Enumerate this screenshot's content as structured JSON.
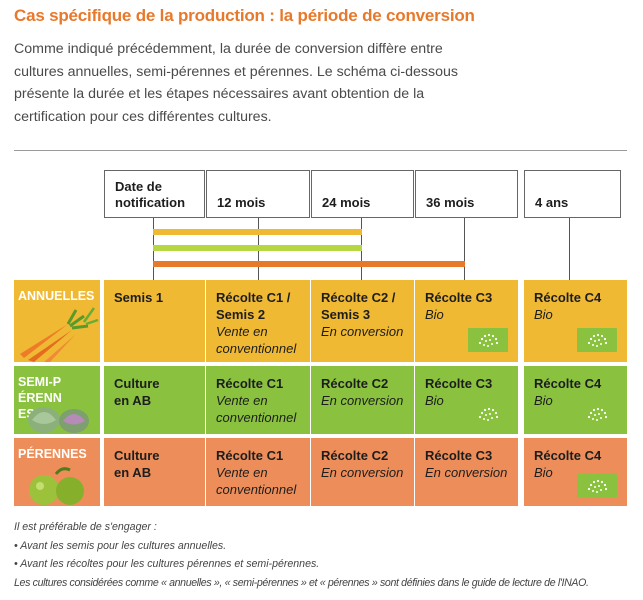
{
  "title": "Cas spécifique de la production : la période de conversion",
  "intro": "Comme indiqué précédemment, la durée de conversion diffère entre cultures annuelles, semi-pérennes et pérennes. Le schéma ci-dessous présente la durée et les étapes nécessaires avant obtention de la certification pour ces différentes cultures.",
  "header": [
    "Date de notification",
    "12 mois",
    "24 mois",
    "36 mois",
    "4 ans"
  ],
  "colors": {
    "title": "#e8792b",
    "annuelles": "#f0b934",
    "semi_perennes": "#8ac23f",
    "perennes": "#ed8e5a",
    "eu_leaf": "#8ac23f"
  },
  "rows": [
    {
      "label": "ANNUELLES",
      "cells": [
        {
          "h": "Semis 1",
          "s": ""
        },
        {
          "h": "Récolte C1 / Semis 2",
          "s": "Vente en conventionnel"
        },
        {
          "h": "Récolte C2 / Semis 3",
          "s": "En conversion"
        },
        {
          "h": "Récolte C3",
          "s": "Bio"
        },
        {
          "h": "Récolte C4",
          "s": "Bio"
        }
      ]
    },
    {
      "label": "SEMI-PÉRENNES",
      "cells": [
        {
          "h": "Culture en AB",
          "s": ""
        },
        {
          "h": "Récolte C1",
          "s": "Vente en conventionnel"
        },
        {
          "h": "Récolte C2",
          "s": "En conversion"
        },
        {
          "h": "Récolte C3",
          "s": "Bio"
        },
        {
          "h": "Récolte C4",
          "s": "Bio"
        }
      ]
    },
    {
      "label": "PÉRENNES",
      "cells": [
        {
          "h": "Culture en AB",
          "s": ""
        },
        {
          "h": "Récolte C1",
          "s": "Vente en conventionnel"
        },
        {
          "h": "Récolte C2",
          "s": "En conversion"
        },
        {
          "h": "Récolte C3",
          "s": "En conversion"
        },
        {
          "h": "Récolte C4",
          "s": "Bio"
        }
      ]
    }
  ],
  "footer": [
    "Il est préférable de s'engager :",
    "• Avant les semis pour les cultures annuelles.",
    "• Avant les récoltes pour les cultures pérennes et semi-pérennes.",
    "Les cultures considérées comme « annuelles », « semi-pérennes » et « pérennes » sont définies dans le guide de lecture de l'INAO."
  ]
}
